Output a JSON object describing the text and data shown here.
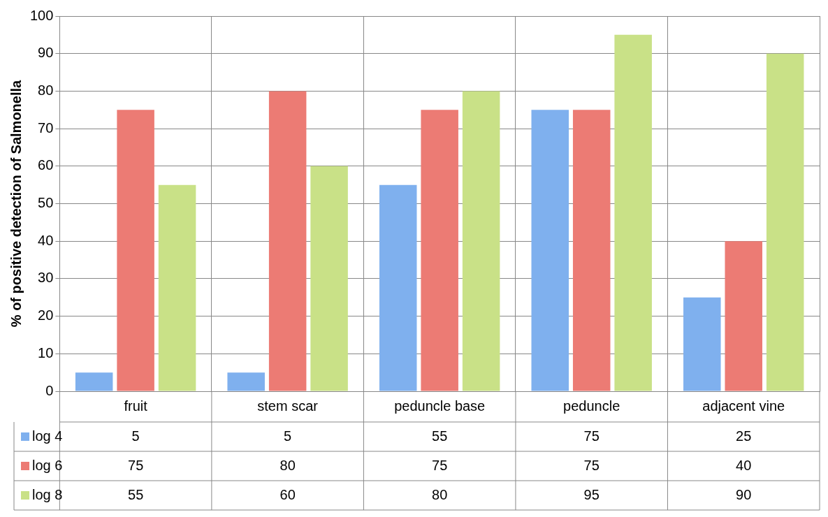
{
  "chart_data": {
    "type": "bar",
    "ylabel": "% of positive detection of Salmonella",
    "categories": [
      "fruit",
      "stem scar",
      "peduncle base",
      "peduncle",
      "adjacent vine"
    ],
    "series": [
      {
        "name": "log 4",
        "color": "#7fb0ee",
        "values": [
          5,
          5,
          55,
          75,
          25
        ]
      },
      {
        "name": "log 6",
        "color": "#ec7b74",
        "values": [
          75,
          80,
          75,
          75,
          40
        ]
      },
      {
        "name": "log 8",
        "color": "#c9e187",
        "values": [
          55,
          60,
          80,
          95,
          90
        ]
      }
    ],
    "ylim": [
      0,
      100
    ],
    "yticks": [
      0,
      10,
      20,
      30,
      40,
      50,
      60,
      70,
      80,
      90,
      100
    ],
    "grid": true,
    "legend": "bottom",
    "data_labels": true
  }
}
